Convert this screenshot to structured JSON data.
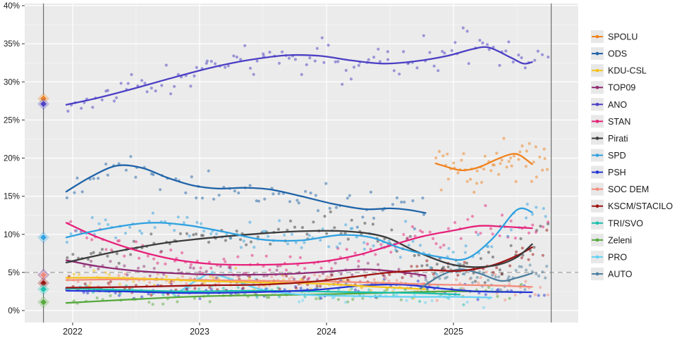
{
  "figure": {
    "background": "#FFFFFF",
    "panel_background": "#EBEBEB",
    "grid_major_color": "#FFFFFF",
    "grid_minor_color": "#F4F4F4",
    "threshold_line": {
      "value": 5,
      "color": "#8C8C8C",
      "style": "dashed"
    },
    "election_lines": {
      "color": "#6E6E6E",
      "dates": [
        2021.77,
        2025.77
      ]
    }
  },
  "chart_data": {
    "type": "scatter",
    "title": "",
    "xlabel": "",
    "ylabel": "",
    "grid": true,
    "legend_position": "right",
    "ylim": [
      0,
      40
    ],
    "xlim": [
      2021.62,
      2025.98
    ],
    "y_ticks": {
      "values": [
        0,
        5,
        10,
        15,
        20,
        25,
        30,
        35,
        40
      ],
      "labels": [
        "0%",
        "5%",
        "10%",
        "15%",
        "20%",
        "25%",
        "30%",
        "35%",
        "40%"
      ]
    },
    "x_ticks": {
      "values": [
        2022,
        2023,
        2024,
        2025
      ],
      "labels": [
        "2022",
        "2023",
        "2024",
        "2025"
      ]
    },
    "x_minor": [
      2022.5,
      2023.5,
      2024.5,
      2025.5
    ],
    "series": [
      {
        "name": "SPOLU",
        "color": "#F0821E",
        "z": 14,
        "points": [
          [
            2024.86,
            19.3
          ],
          [
            2025.0,
            18.6
          ],
          [
            2025.08,
            18.4
          ],
          [
            2025.2,
            18.8
          ],
          [
            2025.35,
            19.9
          ],
          [
            2025.45,
            20.5
          ],
          [
            2025.52,
            20.4
          ],
          [
            2025.62,
            19.2
          ]
        ],
        "scatter": {
          "count": 55,
          "jitter": 0.95,
          "end": 2025.75
        }
      },
      {
        "name": "ODS",
        "color": "#1F63A8",
        "z": 13,
        "points": [
          [
            2021.95,
            15.6
          ],
          [
            2022.15,
            17.6
          ],
          [
            2022.35,
            19.0
          ],
          [
            2022.55,
            18.7
          ],
          [
            2022.75,
            17.4
          ],
          [
            2022.95,
            16.4
          ],
          [
            2023.15,
            16.0
          ],
          [
            2023.35,
            16.1
          ],
          [
            2023.55,
            15.9
          ],
          [
            2023.8,
            15.0
          ],
          [
            2024.05,
            14.0
          ],
          [
            2024.3,
            13.3
          ],
          [
            2024.5,
            13.4
          ],
          [
            2024.65,
            13.2
          ],
          [
            2024.78,
            12.8
          ]
        ],
        "scatter": {
          "count": 72,
          "jitter": 0.95,
          "end": 2024.8
        }
      },
      {
        "name": "KDU-CSL",
        "color": "#F5C21B",
        "z": 6,
        "points": [
          [
            2021.95,
            4.3
          ],
          [
            2022.3,
            4.3
          ],
          [
            2022.7,
            4.1
          ],
          [
            2023.0,
            3.9
          ],
          [
            2023.4,
            3.7
          ],
          [
            2023.8,
            3.6
          ],
          [
            2024.1,
            3.4
          ],
          [
            2024.4,
            3.1
          ],
          [
            2024.78,
            2.8
          ]
        ],
        "scatter": {
          "count": 60,
          "jitter": 0.5,
          "end": 2024.8
        }
      },
      {
        "name": "TOP09",
        "color": "#8F2B74",
        "z": 7,
        "points": [
          [
            2021.95,
            6.6
          ],
          [
            2022.2,
            5.8
          ],
          [
            2022.5,
            5.2
          ],
          [
            2022.8,
            4.9
          ],
          [
            2023.1,
            4.7
          ],
          [
            2023.4,
            4.7
          ],
          [
            2023.7,
            4.8
          ],
          [
            2024.0,
            5.1
          ],
          [
            2024.3,
            5.4
          ],
          [
            2024.55,
            5.1
          ],
          [
            2024.78,
            4.6
          ]
        ],
        "scatter": {
          "count": 60,
          "jitter": 0.55,
          "end": 2024.8
        }
      },
      {
        "name": "ANO",
        "color": "#4B3FC4",
        "z": 15,
        "points": [
          [
            2021.95,
            27.0
          ],
          [
            2022.2,
            27.9
          ],
          [
            2022.5,
            29.2
          ],
          [
            2022.8,
            30.6
          ],
          [
            2023.1,
            31.9
          ],
          [
            2023.4,
            32.9
          ],
          [
            2023.7,
            33.5
          ],
          [
            2023.95,
            33.4
          ],
          [
            2024.2,
            32.8
          ],
          [
            2024.45,
            32.4
          ],
          [
            2024.7,
            32.7
          ],
          [
            2024.95,
            33.4
          ],
          [
            2025.15,
            34.3
          ],
          [
            2025.28,
            34.5
          ],
          [
            2025.45,
            33.2
          ],
          [
            2025.55,
            32.4
          ],
          [
            2025.62,
            32.6
          ]
        ],
        "scatter": {
          "count": 120,
          "jitter": 1.05,
          "end": 2025.75
        }
      },
      {
        "name": "STAN",
        "color": "#E6217A",
        "z": 11,
        "points": [
          [
            2021.95,
            11.5
          ],
          [
            2022.2,
            9.6
          ],
          [
            2022.5,
            7.9
          ],
          [
            2022.8,
            6.7
          ],
          [
            2023.1,
            6.1
          ],
          [
            2023.4,
            6.0
          ],
          [
            2023.7,
            6.1
          ],
          [
            2024.0,
            6.5
          ],
          [
            2024.25,
            7.3
          ],
          [
            2024.5,
            8.5
          ],
          [
            2024.75,
            9.7
          ],
          [
            2025.0,
            10.5
          ],
          [
            2025.2,
            11.1
          ],
          [
            2025.4,
            11.0
          ],
          [
            2025.62,
            10.8
          ]
        ],
        "scatter": {
          "count": 110,
          "jitter": 0.85,
          "end": 2025.75
        }
      },
      {
        "name": "Pirati",
        "color": "#3B3B3B",
        "z": 10,
        "points": [
          [
            2021.95,
            6.3
          ],
          [
            2022.3,
            7.6
          ],
          [
            2022.7,
            8.8
          ],
          [
            2023.0,
            9.4
          ],
          [
            2023.4,
            10.0
          ],
          [
            2023.8,
            10.4
          ],
          [
            2024.15,
            10.4
          ],
          [
            2024.45,
            9.7
          ],
          [
            2024.7,
            7.8
          ],
          [
            2024.95,
            6.2
          ],
          [
            2025.15,
            5.7
          ],
          [
            2025.35,
            6.0
          ],
          [
            2025.5,
            7.0
          ],
          [
            2025.62,
            8.7
          ]
        ],
        "scatter": {
          "count": 110,
          "jitter": 0.85,
          "end": 2025.75
        }
      },
      {
        "name": "SPD",
        "color": "#2FA1E0",
        "z": 12,
        "points": [
          [
            2021.95,
            9.6
          ],
          [
            2022.25,
            10.7
          ],
          [
            2022.6,
            11.5
          ],
          [
            2022.9,
            11.2
          ],
          [
            2023.2,
            10.3
          ],
          [
            2023.5,
            9.3
          ],
          [
            2023.8,
            9.2
          ],
          [
            2024.1,
            9.9
          ],
          [
            2024.35,
            9.6
          ],
          [
            2024.6,
            8.1
          ],
          [
            2024.9,
            7.0
          ],
          [
            2025.1,
            6.8
          ],
          [
            2025.3,
            9.3
          ],
          [
            2025.5,
            13.2
          ],
          [
            2025.62,
            12.9
          ]
        ],
        "scatter": {
          "count": 110,
          "jitter": 0.95,
          "end": 2025.75
        }
      },
      {
        "name": "PSH",
        "color": "#2433D6",
        "z": 4,
        "points": [
          [
            2021.95,
            2.6
          ],
          [
            2022.4,
            2.5
          ],
          [
            2022.9,
            2.3
          ],
          [
            2023.4,
            2.4
          ],
          [
            2023.9,
            2.7
          ],
          [
            2024.3,
            3.3
          ],
          [
            2024.6,
            3.4
          ],
          [
            2024.9,
            2.9
          ],
          [
            2025.2,
            2.5
          ],
          [
            2025.62,
            2.4
          ]
        ],
        "scatter": {
          "count": 75,
          "jitter": 0.5,
          "end": 2025.75
        }
      },
      {
        "name": "SOC DEM",
        "color": "#F48C7C",
        "z": 5,
        "points": [
          [
            2021.95,
            4.0
          ],
          [
            2022.5,
            4.1
          ],
          [
            2023.0,
            4.0
          ],
          [
            2023.5,
            3.9
          ],
          [
            2024.0,
            3.8
          ],
          [
            2024.5,
            3.6
          ],
          [
            2024.9,
            3.4
          ],
          [
            2025.3,
            3.3
          ],
          [
            2025.62,
            3.1
          ]
        ],
        "scatter": {
          "count": 90,
          "jitter": 0.55,
          "end": 2025.75
        }
      },
      {
        "name": "KSCM/STACILO",
        "color": "#9E1212",
        "z": 9,
        "points": [
          [
            2021.95,
            3.0
          ],
          [
            2022.5,
            3.1
          ],
          [
            2023.0,
            3.3
          ],
          [
            2023.5,
            3.4
          ],
          [
            2023.9,
            3.8
          ],
          [
            2024.2,
            4.4
          ],
          [
            2024.5,
            5.0
          ],
          [
            2024.8,
            5.3
          ],
          [
            2025.05,
            5.2
          ],
          [
            2025.3,
            5.9
          ],
          [
            2025.5,
            7.2
          ],
          [
            2025.62,
            8.3
          ]
        ],
        "scatter": {
          "count": 90,
          "jitter": 0.65,
          "end": 2025.75
        }
      },
      {
        "name": "TRI/SVO",
        "color": "#18BFAE",
        "z": 3,
        "points": [
          [
            2021.95,
            2.9
          ],
          [
            2022.4,
            2.7
          ],
          [
            2022.9,
            2.5
          ],
          [
            2023.4,
            2.6
          ],
          [
            2023.9,
            2.5
          ],
          [
            2024.3,
            2.4
          ],
          [
            2024.7,
            2.3
          ],
          [
            2025.05,
            2.1
          ]
        ],
        "scatter": {
          "count": 55,
          "jitter": 0.45,
          "end": 2025.08
        }
      },
      {
        "name": "Zeleni",
        "color": "#55A83C",
        "z": 1,
        "points": [
          [
            2021.95,
            1.0
          ],
          [
            2022.4,
            1.4
          ],
          [
            2022.9,
            1.8
          ],
          [
            2023.4,
            2.0
          ],
          [
            2023.9,
            2.1
          ],
          [
            2024.4,
            2.3
          ],
          [
            2024.9,
            2.5
          ],
          [
            2025.25,
            2.5
          ],
          [
            2025.55,
            2.4
          ]
        ],
        "scatter": {
          "count": 55,
          "jitter": 0.4,
          "end": 2025.6
        }
      },
      {
        "name": "PRO",
        "color": "#63D2F5",
        "z": 2,
        "points": [
          [
            2022.85,
            2.6
          ],
          [
            2023.0,
            4.2
          ],
          [
            2023.1,
            4.8
          ],
          [
            2023.3,
            3.8
          ],
          [
            2023.5,
            2.7
          ],
          [
            2023.8,
            2.1
          ],
          [
            2024.2,
            1.9
          ],
          [
            2024.6,
            1.8
          ],
          [
            2025.0,
            1.8
          ],
          [
            2025.3,
            1.7
          ]
        ],
        "scatter": {
          "count": 50,
          "jitter": 0.45,
          "end": 2025.35
        }
      },
      {
        "name": "AUTO",
        "color": "#4E7F9E",
        "z": 8,
        "points": [
          [
            2024.74,
            2.9
          ],
          [
            2024.9,
            4.6
          ],
          [
            2025.05,
            5.4
          ],
          [
            2025.2,
            4.9
          ],
          [
            2025.37,
            3.9
          ],
          [
            2025.5,
            4.3
          ],
          [
            2025.62,
            4.9
          ]
        ],
        "scatter": {
          "count": 45,
          "jitter": 0.6,
          "end": 2025.75
        }
      }
    ],
    "election_results": {
      "date": 2021.77,
      "markers": [
        {
          "party": "SPOLU",
          "value": 27.8
        },
        {
          "party": "ANO",
          "value": 27.1
        },
        {
          "party": "SPD",
          "value": 9.6
        },
        {
          "party": "PSH",
          "value": 4.7
        },
        {
          "party": "SOC DEM",
          "value": 4.65
        },
        {
          "party": "KSCM/STACILO",
          "value": 3.6
        },
        {
          "party": "TRI/SVO",
          "value": 2.8
        },
        {
          "party": "Zeleni",
          "value": 1.1
        }
      ]
    }
  }
}
